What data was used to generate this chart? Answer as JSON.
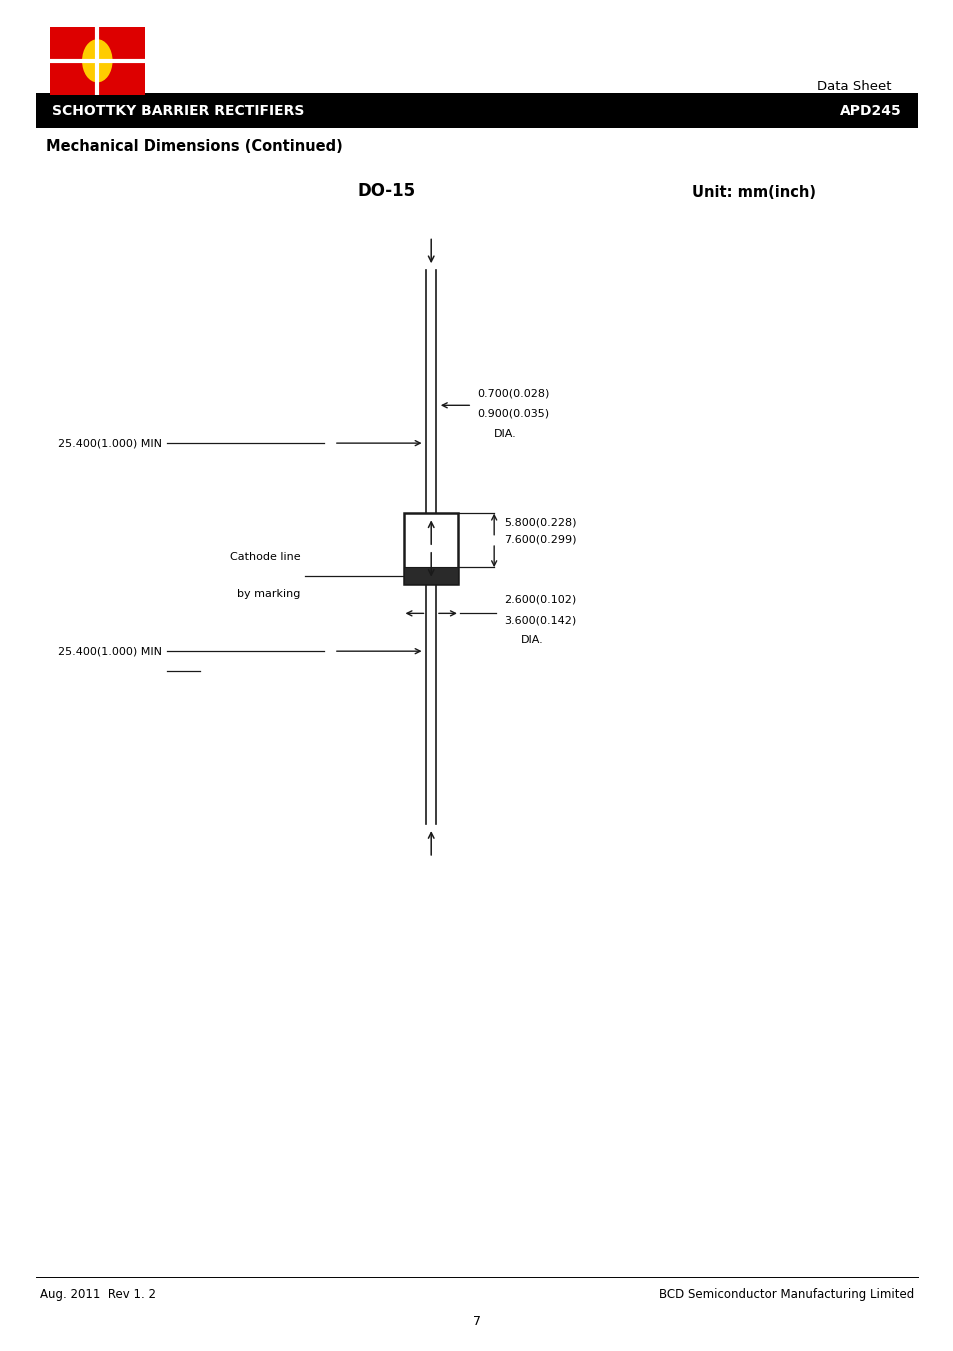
{
  "bg_color": "#ffffff",
  "page_width": 9.54,
  "page_height": 13.51,
  "header": {
    "datasheet_label": "Data Sheet",
    "banner_text": "SCHOTTKY BARRIER RECTIFIERS",
    "part_number": "APD245",
    "banner_bg": "#000000",
    "banner_fg": "#ffffff"
  },
  "section_title": "Mechanical Dimensions (Continued)",
  "drawing_title": "DO-15",
  "unit_label": "Unit: mm(inch)",
  "annotations": {
    "wire_dim_top": "25.400(1.000) MIN",
    "wire_dim_bottom": "25.400(1.000) MIN",
    "lead_dia_line1": "0.700(0.028)",
    "lead_dia_line2": "0.900(0.035)",
    "lead_dia_label": "DIA.",
    "body_len_line1": "5.800(0.228)",
    "body_len_line2": "7.600(0.299)",
    "body_dia_line1": "2.600(0.102)",
    "body_dia_line2": "3.600(0.142)",
    "body_dia_label": "DIA.",
    "cathode_line1": "Cathode line",
    "cathode_line2": "by marking"
  },
  "footer": {
    "left": "Aug. 2011  Rev 1. 2",
    "right": "BCD Semiconductor Manufacturing Limited",
    "page_num": "7"
  }
}
